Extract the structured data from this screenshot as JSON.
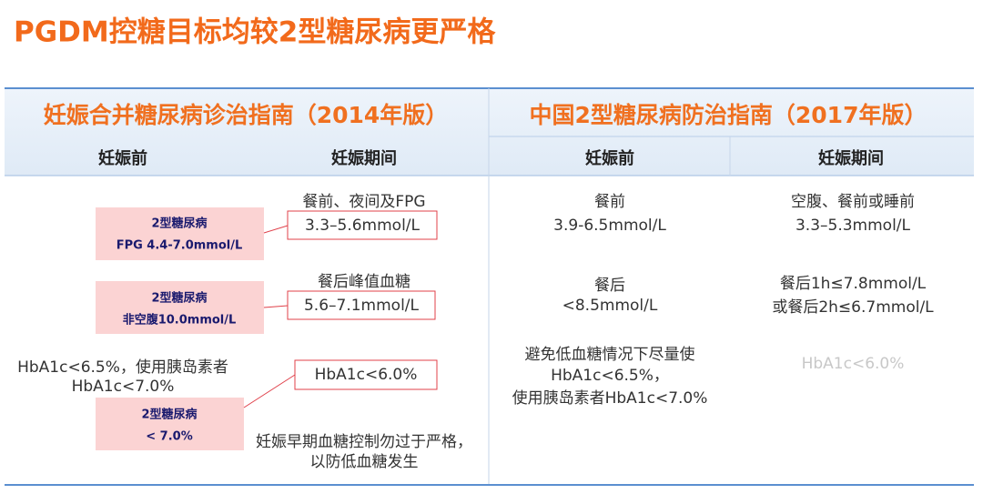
{
  "title": "PGDM控糖目标均较2型糖尿病更严格",
  "left": {
    "heading": "妊娠合并糖尿病诊治指南（2014年版）",
    "columns": [
      "妊娠前",
      "妊娠期间"
    ],
    "pre_pregnancy": [
      {
        "lines": [
          "2型糖尿病",
          "FPG 4.4-7.0mmol/L"
        ]
      },
      {
        "lines": [
          "2型糖尿病",
          "非空腹10.0mmol/L"
        ]
      },
      {
        "lines": [
          "2型糖尿病",
          "< 7.0%"
        ]
      }
    ],
    "pre_pregnancy_note": [
      "HbA1c<6.5%，使用胰岛素者",
      "HbA1c<7.0%"
    ],
    "pregnancy": [
      {
        "label": "餐前、夜间及FPG",
        "target": "3.3–5.6mmol/L"
      },
      {
        "label": "餐后峰值血糖",
        "target": "5.6–7.1mmol/L"
      },
      {
        "target": "HbA1c<6.0%"
      }
    ],
    "pregnancy_note": [
      "妊娠早期血糖控制勿过于严格，",
      "以防低血糖发生"
    ]
  },
  "right": {
    "heading": "中国2型糖尿病防治指南（2017年版）",
    "columns": [
      "妊娠前",
      "妊娠期间"
    ],
    "pre_pregnancy": [
      [
        "餐前",
        "3.9-6.5mmol/L"
      ],
      [
        "餐后",
        "<8.5mmol/L"
      ],
      [
        "避免低血糖情况下尽量使",
        "HbA1c<6.5%，",
        "使用胰岛素者HbA1c<7.0%"
      ]
    ],
    "pregnancy": [
      [
        "空腹、餐前或睡前",
        "3.3–5.3mmol/L"
      ],
      [
        "餐后1h≤7.8mmol/L",
        "或餐后2h≤6.7mmol/L"
      ],
      [
        "HbA1c<6.0%"
      ]
    ]
  }
}
